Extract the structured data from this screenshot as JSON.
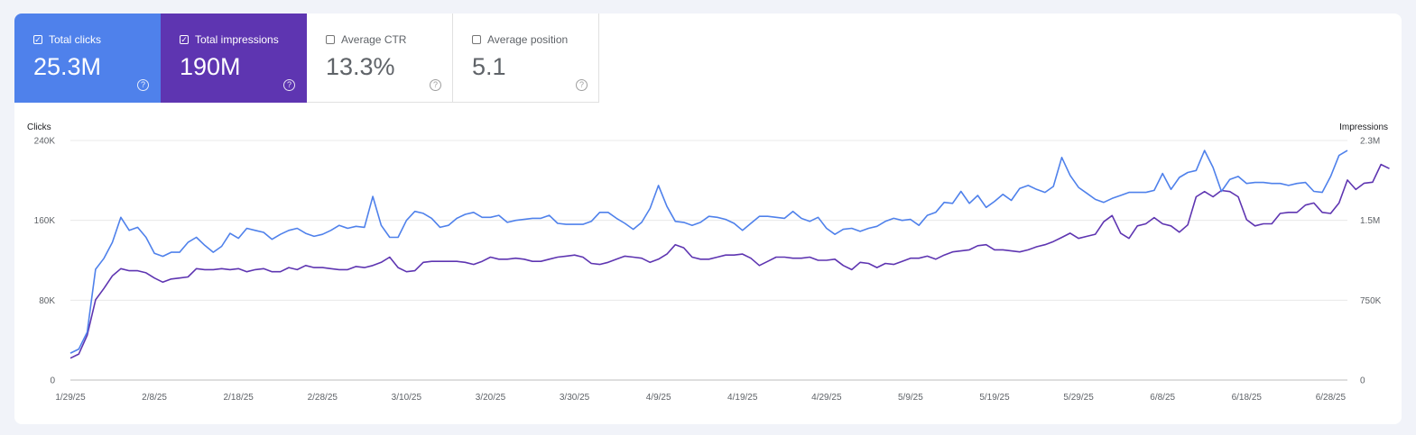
{
  "metrics": [
    {
      "label": "Total clicks",
      "value": "25.3M",
      "checked": true,
      "color": "#4f81eb"
    },
    {
      "label": "Total impressions",
      "value": "190M",
      "checked": true,
      "color": "#5e35b1"
    },
    {
      "label": "Average CTR",
      "value": "13.3%",
      "checked": false
    },
    {
      "label": "Average position",
      "value": "5.1",
      "checked": false
    }
  ],
  "chart_data": {
    "type": "line",
    "left_axis_label": "Clicks",
    "right_axis_label": "Impressions",
    "left_ticks": [
      "240K",
      "160K",
      "80K",
      "0"
    ],
    "right_ticks": [
      "2.3M",
      "1.5M",
      "750K",
      "0"
    ],
    "left_range": [
      0,
      240000
    ],
    "right_range": [
      0,
      2300000
    ],
    "x_ticks": [
      "1/29/25",
      "2/8/25",
      "2/18/25",
      "2/28/25",
      "3/10/25",
      "3/20/25",
      "3/30/25",
      "4/9/25",
      "4/19/25",
      "4/29/25",
      "5/9/25",
      "5/19/25",
      "5/29/25",
      "6/8/25",
      "6/18/25",
      "6/28/25"
    ],
    "x_start": "1/29/25",
    "grid": true,
    "series": [
      {
        "name": "Total clicks",
        "axis": "left",
        "color": "#4f81eb",
        "values": [
          27000,
          31000,
          48000,
          111000,
          122000,
          138000,
          163000,
          150000,
          153000,
          143000,
          127000,
          124000,
          128000,
          128000,
          138000,
          143000,
          135000,
          128000,
          134000,
          147000,
          142000,
          152000,
          150000,
          148000,
          141000,
          146000,
          150000,
          152000,
          147000,
          144000,
          146000,
          150000,
          155000,
          152000,
          154000,
          153000,
          184000,
          155000,
          143000,
          143000,
          160000,
          169000,
          167000,
          162000,
          153000,
          155000,
          162000,
          166000,
          168000,
          163000,
          163000,
          165000,
          158000,
          160000,
          161000,
          162000,
          162000,
          165000,
          157000,
          156000,
          156000,
          156000,
          159000,
          168000,
          168000,
          162000,
          157000,
          151000,
          158000,
          172000,
          195000,
          174000,
          159000,
          158000,
          155000,
          158000,
          164000,
          163000,
          161000,
          157000,
          150000,
          157000,
          164000,
          164000,
          163000,
          162000,
          169000,
          162000,
          159000,
          163000,
          152000,
          146000,
          151000,
          152000,
          149000,
          152000,
          154000,
          159000,
          162000,
          160000,
          161000,
          155000,
          165000,
          168000,
          178000,
          177000,
          189000,
          177000,
          185000,
          173000,
          179000,
          186000,
          180000,
          192000,
          195000,
          191000,
          188000,
          194000,
          223000,
          205000,
          193000,
          187000,
          181000,
          178000,
          182000,
          185000,
          188000,
          188000,
          188000,
          190000,
          207000,
          191000,
          203000,
          208000,
          210000,
          230000,
          213000,
          189000,
          201000,
          204000,
          197000,
          198000,
          198000,
          197000,
          197000,
          195000,
          197000,
          198000,
          189000,
          188000,
          204000,
          225000,
          230000
        ],
        "display": "computed"
      },
      {
        "name": "Total impressions",
        "axis": "right",
        "color": "#5e35b1",
        "values": [
          210000,
          250000,
          430000,
          770000,
          880000,
          1000000,
          1070000,
          1050000,
          1050000,
          1030000,
          980000,
          940000,
          970000,
          980000,
          990000,
          1070000,
          1060000,
          1060000,
          1070000,
          1060000,
          1070000,
          1040000,
          1060000,
          1070000,
          1040000,
          1040000,
          1080000,
          1060000,
          1100000,
          1080000,
          1080000,
          1070000,
          1060000,
          1060000,
          1090000,
          1080000,
          1100000,
          1130000,
          1180000,
          1080000,
          1040000,
          1050000,
          1130000,
          1140000,
          1140000,
          1140000,
          1140000,
          1130000,
          1110000,
          1140000,
          1180000,
          1160000,
          1160000,
          1170000,
          1160000,
          1140000,
          1140000,
          1160000,
          1180000,
          1190000,
          1200000,
          1180000,
          1120000,
          1110000,
          1130000,
          1160000,
          1190000,
          1180000,
          1170000,
          1130000,
          1160000,
          1210000,
          1300000,
          1270000,
          1180000,
          1160000,
          1160000,
          1180000,
          1200000,
          1200000,
          1210000,
          1170000,
          1100000,
          1140000,
          1180000,
          1180000,
          1170000,
          1170000,
          1180000,
          1150000,
          1150000,
          1160000,
          1100000,
          1060000,
          1130000,
          1120000,
          1080000,
          1120000,
          1110000,
          1140000,
          1170000,
          1170000,
          1190000,
          1160000,
          1200000,
          1230000,
          1240000,
          1250000,
          1290000,
          1300000,
          1250000,
          1250000,
          1240000,
          1230000,
          1250000,
          1280000,
          1300000,
          1330000,
          1370000,
          1410000,
          1360000,
          1380000,
          1400000,
          1520000,
          1580000,
          1410000,
          1360000,
          1480000,
          1500000,
          1560000,
          1500000,
          1480000,
          1420000,
          1490000,
          1760000,
          1810000,
          1760000,
          1820000,
          1810000,
          1760000,
          1540000,
          1480000,
          1500000,
          1500000,
          1600000,
          1610000,
          1610000,
          1680000,
          1700000,
          1610000,
          1600000,
          1700000,
          1920000,
          1830000,
          1890000,
          1900000,
          2070000,
          2030000
        ],
        "display": "computed"
      }
    ]
  }
}
